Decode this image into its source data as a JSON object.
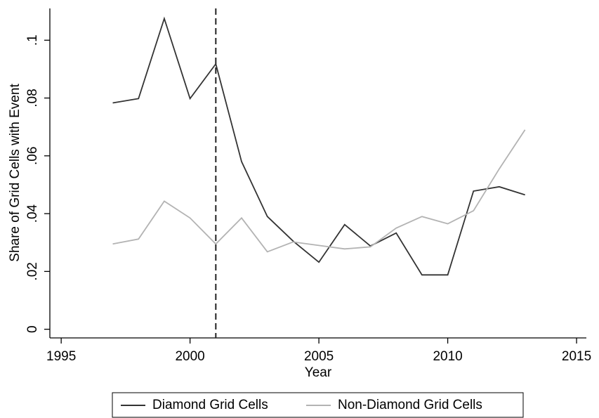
{
  "chart_data": {
    "type": "line",
    "x_label": "Year",
    "y_label": "Share of Grid Cells with Event",
    "x": [
      1997,
      1998,
      1999,
      2000,
      2001,
      2002,
      2003,
      2004,
      2005,
      2006,
      2007,
      2008,
      2009,
      2010,
      2011,
      2012,
      2013
    ],
    "series": [
      {
        "name": "Diamond Grid Cells",
        "color": "#333333",
        "values": [
          0.0783,
          0.0798,
          0.1075,
          0.0798,
          0.0918,
          0.058,
          0.039,
          0.0305,
          0.0232,
          0.0362,
          0.0288,
          0.0333,
          0.0188,
          0.0188,
          0.0478,
          0.0493,
          0.0465
        ]
      },
      {
        "name": "Non-Diamond Grid Cells",
        "color": "#b3b3b3",
        "values": [
          0.0295,
          0.0312,
          0.0443,
          0.0385,
          0.0295,
          0.0385,
          0.0268,
          0.0302,
          0.029,
          0.0278,
          0.0285,
          0.035,
          0.039,
          0.0365,
          0.041,
          0.0555,
          0.069
        ]
      }
    ],
    "vline": 2001,
    "xlim": [
      1994.56,
      2015.38
    ],
    "xticks": [
      1995,
      2000,
      2005,
      2010,
      2015
    ],
    "ylim": [
      -0.003,
      0.111
    ],
    "yticks": [
      0,
      {
        "value": 0.02,
        "label": ".02"
      },
      {
        "value": 0.04,
        "label": ".04"
      },
      {
        "value": 0.06,
        "label": ".06"
      },
      {
        "value": 0.08,
        "label": ".08"
      },
      {
        "value": 0.1,
        "label": ".1"
      }
    ],
    "legend": "bottom"
  }
}
